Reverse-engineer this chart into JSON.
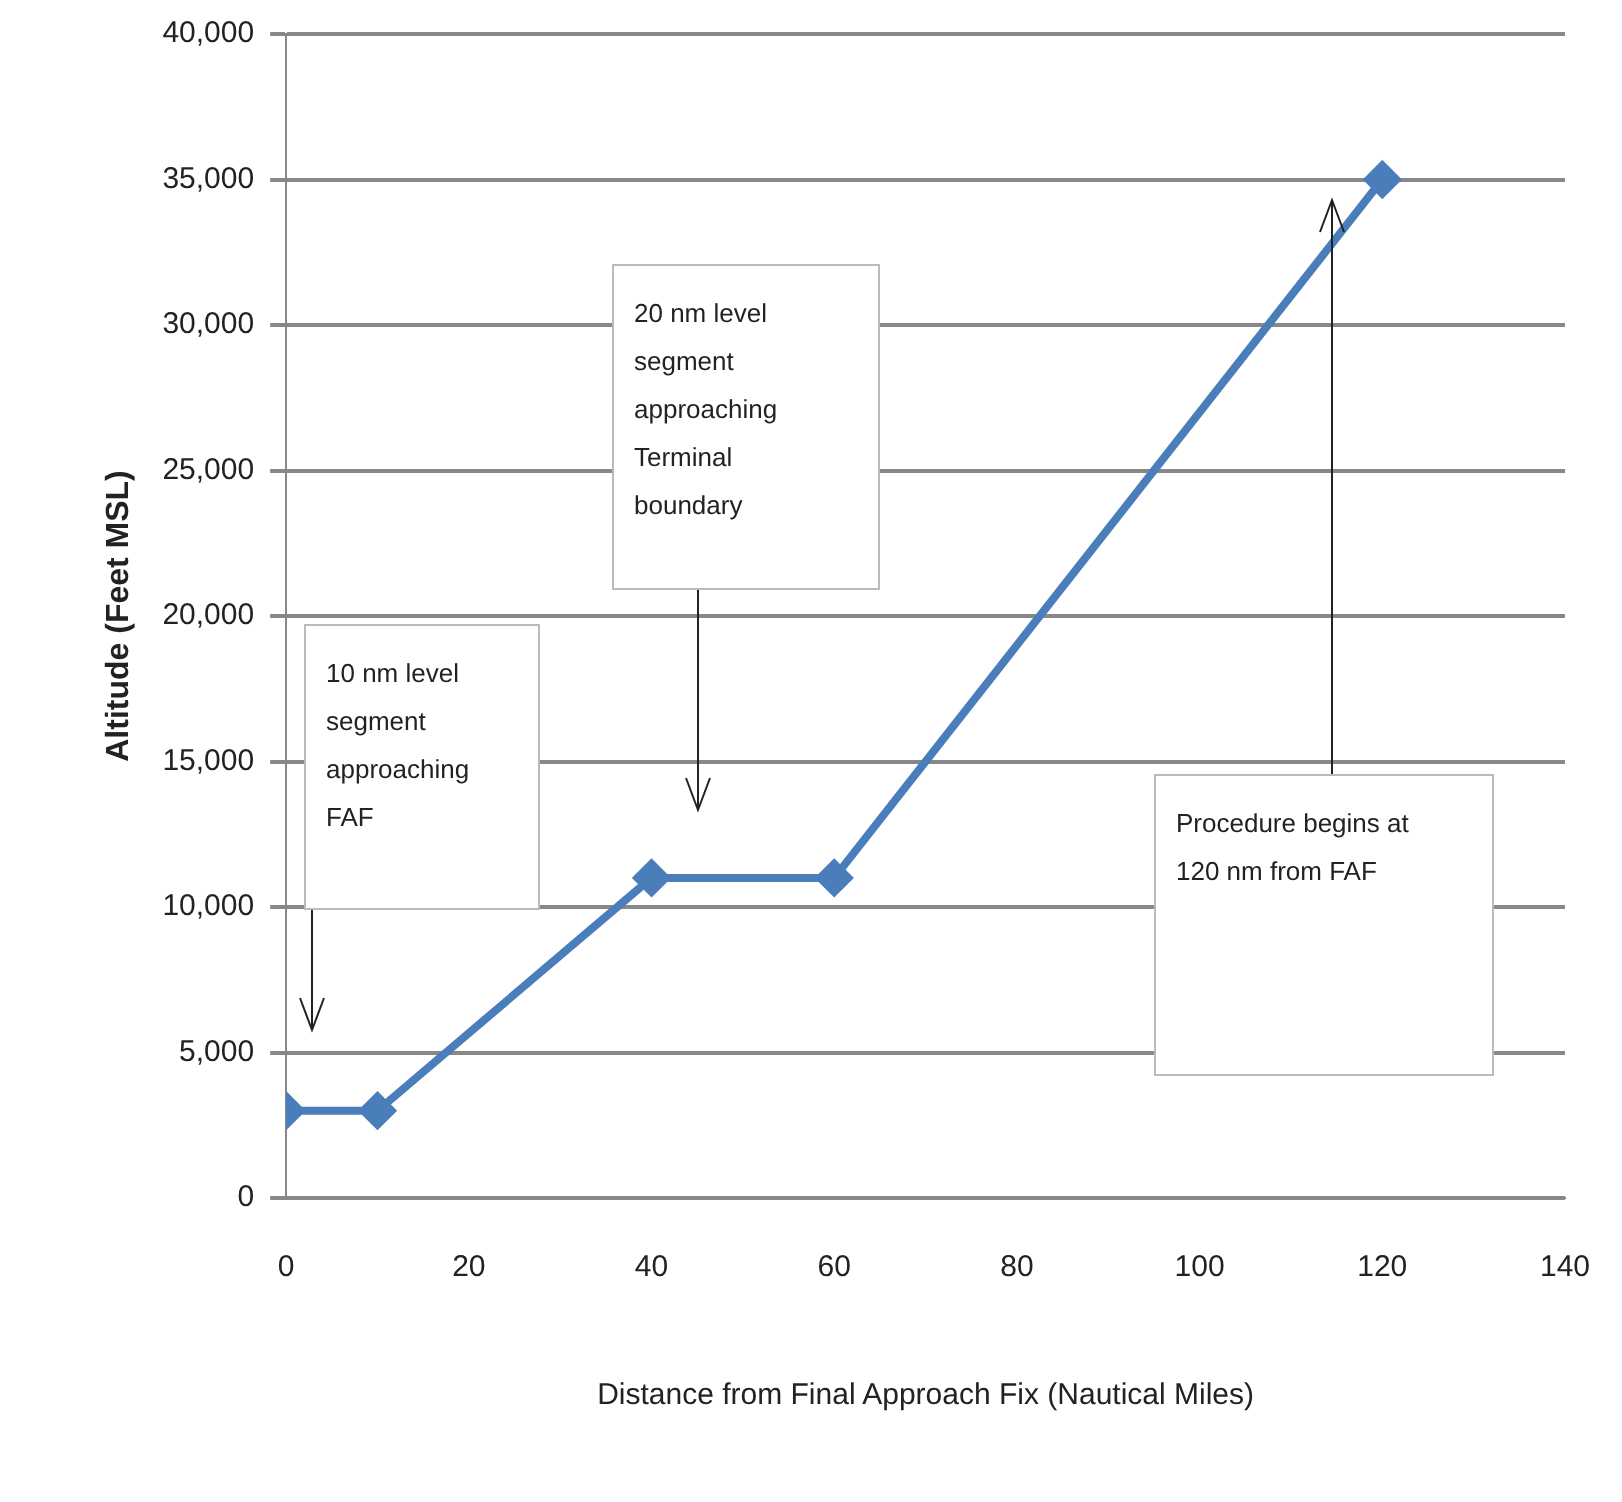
{
  "chart_data": {
    "type": "line",
    "xlabel": "Distance from Final Approach Fix (Nautical Miles)",
    "ylabel": "Altitude (Feet MSL)",
    "x": [
      0,
      10,
      40,
      60,
      120
    ],
    "series": [
      {
        "color": "#4a7ebb",
        "values": [
          3000,
          3000,
          11000,
          11000,
          35000
        ]
      }
    ],
    "xlim": [
      0,
      140
    ],
    "xticks": [
      0,
      20,
      40,
      60,
      80,
      100,
      120,
      140
    ],
    "ylim": [
      0,
      40000
    ],
    "yticks": [
      {
        "value": 0,
        "label": "0"
      },
      {
        "value": 5000,
        "label": "5,000"
      },
      {
        "value": 10000,
        "label": "10,000"
      },
      {
        "value": 15000,
        "label": "15,000"
      },
      {
        "value": 20000,
        "label": "20,000"
      },
      {
        "value": 25000,
        "label": "25,000"
      },
      {
        "value": 30000,
        "label": "30,000"
      },
      {
        "value": 35000,
        "label": "35,000"
      },
      {
        "value": 40000,
        "label": "40,000"
      }
    ],
    "grid": "y",
    "legend": false,
    "marker": "diamond",
    "line_style": "solid",
    "annotations": [
      "10 nm level segment approaching FAF",
      "20 nm level segment approaching Terminal boundary",
      "Procedure begins at 120 nm from FAF"
    ]
  }
}
